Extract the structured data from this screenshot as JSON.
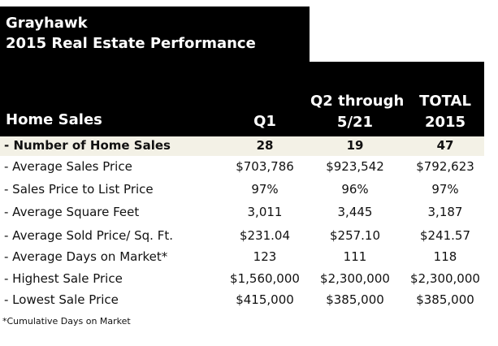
{
  "title": {
    "line1": "Grayhawk",
    "line2": "2015 Real Estate Performance"
  },
  "header": {
    "label": "Home Sales",
    "col1": "Q1",
    "col2_line1": "Q2 through",
    "col2_line2": "5/21",
    "col3_line1": "TOTAL",
    "col3_line2": "2015"
  },
  "rows": [
    {
      "label": "- Number of Home Sales",
      "q1": "28",
      "q2": "19",
      "total": "47"
    },
    {
      "label": "- Average Sales Price",
      "q1": "$703,786",
      "q2": "$923,542",
      "total": "$792,623"
    },
    {
      "label": "- Sales Price to List Price",
      "q1": "97%",
      "q2": "96%",
      "total": "97%"
    },
    {
      "label": "- Average Square Feet",
      "q1": "3,011",
      "q2": "3,445",
      "total": "3,187"
    },
    {
      "label": "- Average Sold Price/ Sq. Ft.",
      "q1": "$231.04",
      "q2": "$257.10",
      "total": "$241.57"
    },
    {
      "label": "- Average Days on Market*",
      "q1": "123",
      "q2": "111",
      "total": "118"
    },
    {
      "label": "- Highest Sale Price",
      "q1": "$1,560,000",
      "q2": "$2,300,000",
      "total": "$2,300,000"
    },
    {
      "label": "- Lowest Sale Price",
      "q1": "$415,000",
      "q2": "$385,000",
      "total": "$385,000"
    }
  ],
  "footnote": "*Cumulative Days on Market"
}
